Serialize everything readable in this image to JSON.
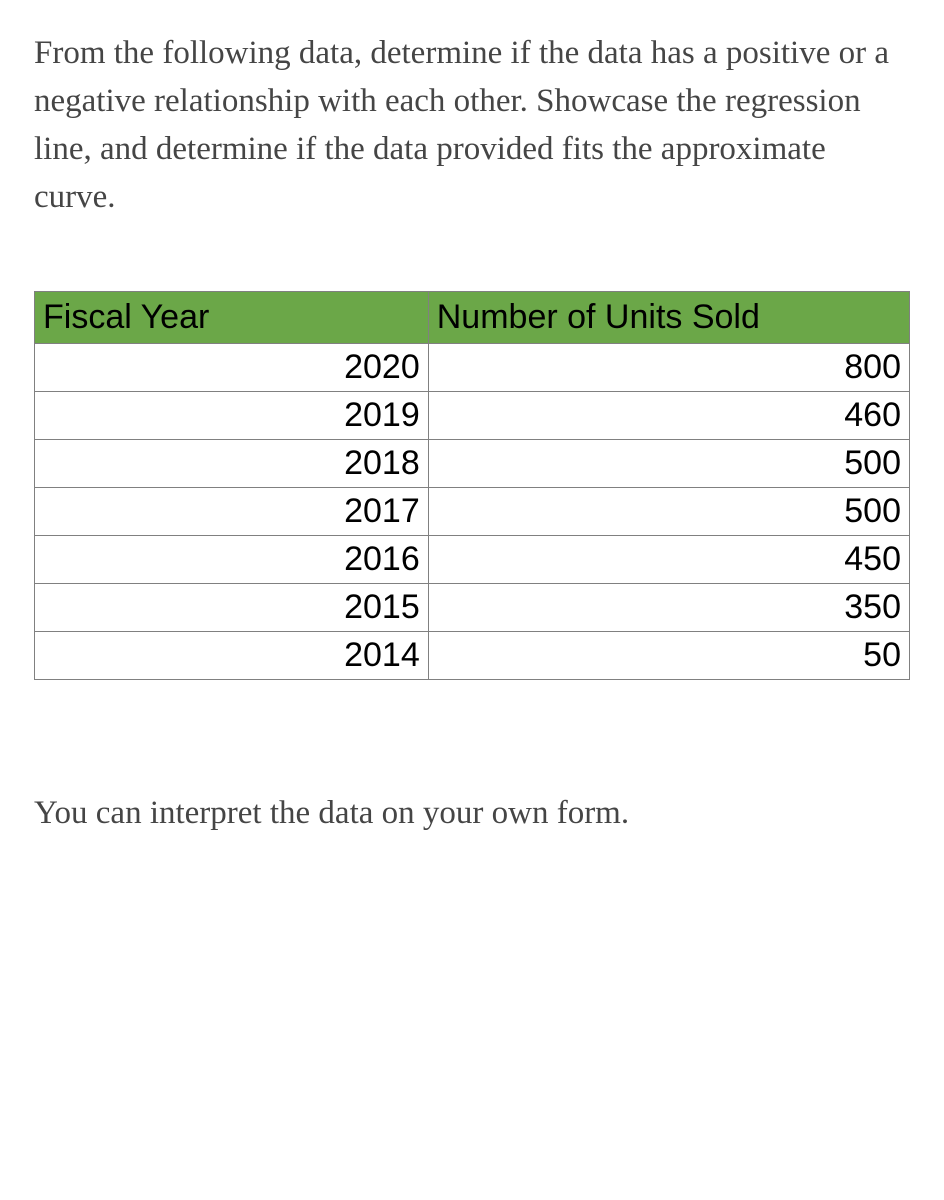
{
  "question": {
    "text": "From the following data, determine if the data has a positive or a negative relationship with each other. Showcase the regression line, and determine if the data provided fits the approximate curve."
  },
  "table": {
    "type": "table",
    "header_bg_color": "#6ba748",
    "header_text_color": "#000000",
    "border_color": "#808080",
    "cell_bg_color": "#ffffff",
    "font_family": "Arial",
    "header_fontsize": 34,
    "cell_fontsize": 34,
    "columns": [
      "Fiscal Year",
      "Number of Units Sold"
    ],
    "column_align": [
      "right",
      "right"
    ],
    "header_align": [
      "left",
      "left"
    ],
    "rows": [
      [
        "2020",
        "800"
      ],
      [
        "2019",
        "460"
      ],
      [
        "2018",
        "500"
      ],
      [
        "2017",
        "500"
      ],
      [
        "2016",
        "450"
      ],
      [
        "2015",
        "350"
      ],
      [
        "2014",
        "50"
      ]
    ]
  },
  "footer": {
    "text": "You can interpret the data on your own form."
  },
  "styling": {
    "body_bg": "#ffffff",
    "text_color": "#454545",
    "question_font_family": "Georgia",
    "question_fontsize": 33
  }
}
